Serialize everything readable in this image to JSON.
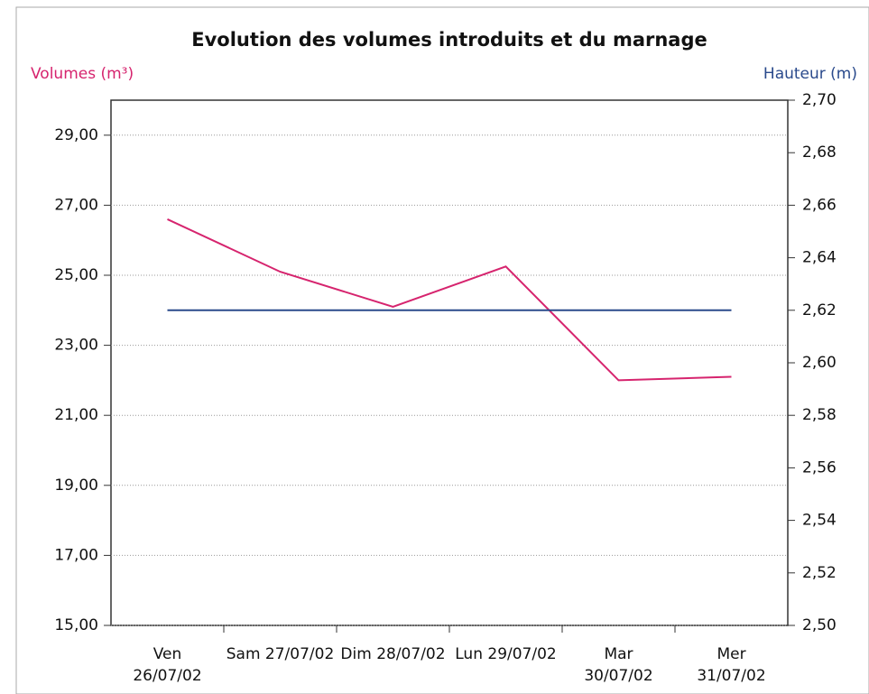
{
  "chart_data": {
    "type": "line",
    "title": "Evolution des volumes introduits et du marnage",
    "ylabel": "Volumes (m³)",
    "y2label": "Hauteur (m)",
    "categories": [
      "Ven\n26/07/02",
      "Sam 27/07/02",
      "Dim 28/07/02",
      "Lun  29/07/02",
      "Mar\n30/07/02",
      "Mer\n31/07/02"
    ],
    "series": [
      {
        "name": "Volumes",
        "color": "#d6246e",
        "values": [
          26.6,
          25.1,
          24.1,
          25.25,
          22.0,
          22.1
        ]
      },
      {
        "name": "Hauteur",
        "color": "#2a4a8c",
        "axis": "y2",
        "values": [
          2.62,
          2.62,
          2.62,
          2.62,
          2.62,
          2.62
        ]
      }
    ],
    "ylim": [
      15,
      30
    ],
    "yticks": [
      {
        "value": 15,
        "label": "15,00"
      },
      {
        "value": 17,
        "label": "17,00"
      },
      {
        "value": 19,
        "label": "19,00"
      },
      {
        "value": 21,
        "label": "21,00"
      },
      {
        "value": 23,
        "label": "23,00"
      },
      {
        "value": 25,
        "label": "25,00"
      },
      {
        "value": 27,
        "label": "27,00"
      },
      {
        "value": 29,
        "label": "29,00"
      }
    ],
    "y2lim": [
      2.5,
      2.7
    ],
    "y2ticks": [
      {
        "value": 2.5,
        "label": "2,50"
      },
      {
        "value": 2.52,
        "label": "2,52"
      },
      {
        "value": 2.54,
        "label": "2,54"
      },
      {
        "value": 2.56,
        "label": "2,56"
      },
      {
        "value": 2.58,
        "label": "2,58"
      },
      {
        "value": 2.6,
        "label": "2,60"
      },
      {
        "value": 2.62,
        "label": "2,62"
      },
      {
        "value": 2.64,
        "label": "2,64"
      },
      {
        "value": 2.66,
        "label": "2,66"
      },
      {
        "value": 2.68,
        "label": "2,68"
      },
      {
        "value": 2.7,
        "label": "2,70"
      }
    ],
    "grid": true
  }
}
